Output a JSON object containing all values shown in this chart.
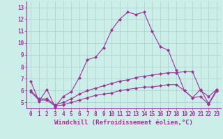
{
  "title": "",
  "xlabel": "Windchill (Refroidissement éolien,°C)",
  "background_color": "#cceee8",
  "grid_color": "#aacccc",
  "line_color": "#993399",
  "x_ticks": [
    0,
    1,
    2,
    3,
    4,
    5,
    6,
    7,
    8,
    9,
    10,
    11,
    12,
    13,
    14,
    15,
    16,
    17,
    18,
    19,
    20,
    21,
    22,
    23
  ],
  "ylim": [
    4.5,
    13.5
  ],
  "xlim": [
    -0.5,
    23.5
  ],
  "yticks": [
    5,
    6,
    7,
    8,
    9,
    10,
    11,
    12,
    13
  ],
  "line1": [
    6.8,
    5.1,
    6.1,
    4.6,
    5.5,
    5.9,
    7.1,
    8.6,
    8.8,
    9.6,
    11.1,
    12.0,
    12.6,
    12.4,
    12.6,
    11.0,
    9.7,
    9.4,
    7.7,
    6.0,
    5.4,
    6.1,
    4.9,
    6.1
  ],
  "line2": [
    6.0,
    5.3,
    5.3,
    4.8,
    5.0,
    5.3,
    5.7,
    6.0,
    6.2,
    6.4,
    6.6,
    6.8,
    6.9,
    7.1,
    7.2,
    7.3,
    7.4,
    7.5,
    7.5,
    7.6,
    7.6,
    6.0,
    5.5,
    6.1
  ],
  "line3": [
    5.9,
    5.2,
    5.2,
    4.7,
    4.8,
    5.0,
    5.2,
    5.4,
    5.6,
    5.7,
    5.8,
    6.0,
    6.1,
    6.2,
    6.3,
    6.3,
    6.4,
    6.5,
    6.5,
    6.0,
    5.4,
    5.5,
    4.85,
    5.95
  ],
  "marker": "D",
  "markersize": 2,
  "linewidth": 0.8,
  "tick_fontsize": 5.5,
  "xlabel_fontsize": 6.5,
  "spine_color": "#993399"
}
